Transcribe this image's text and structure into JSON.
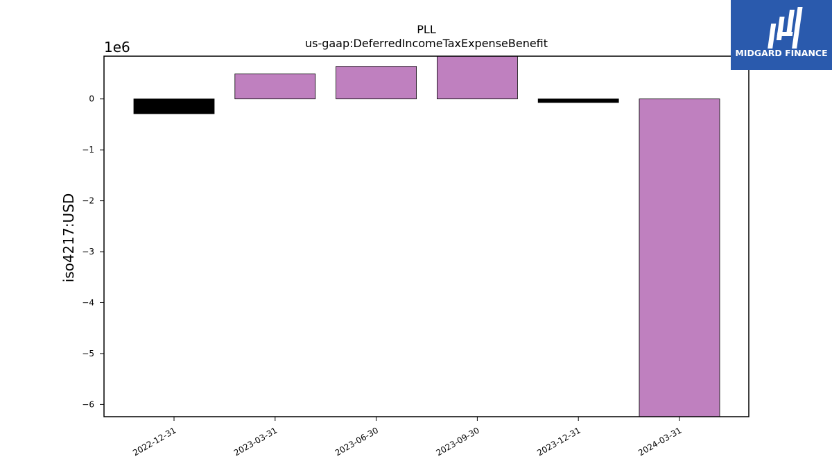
{
  "brand": {
    "name": "MIDGARD FINANCE",
    "background": "#2a5aad"
  },
  "chart_data": {
    "type": "bar",
    "title": "PLL",
    "subtitle": "us-gaap:DeferredIncomeTaxExpenseBenefit",
    "xlabel": "",
    "ylabel": "iso4217:USD",
    "y_offset_label": "1e6",
    "categories": [
      "2022-12-31",
      "2023-03-31",
      "2023-06-30",
      "2023-09-30",
      "2023-12-31",
      "2024-03-31"
    ],
    "values": [
      -0.29,
      0.49,
      0.64,
      0.84,
      -0.07,
      -6.24
    ],
    "bar_colors": [
      "#000000",
      "#bf80bf",
      "#bf80bf",
      "#bf80bf",
      "#000000",
      "#bf80bf"
    ],
    "ylim": [
      -6.24,
      0.84
    ],
    "yticks": [
      0,
      -1,
      -2,
      -3,
      -4,
      -5,
      -6
    ],
    "ytick_labels": [
      "0",
      "−1",
      "−2",
      "−3",
      "−4",
      "−5",
      "−6"
    ],
    "grid": false,
    "legend": "none"
  }
}
